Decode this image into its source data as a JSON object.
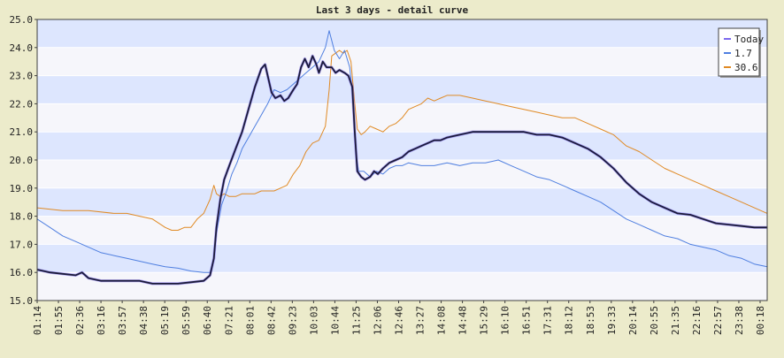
{
  "chart_data": {
    "type": "line",
    "title": "Last 3 days - detail curve",
    "xlabel": "",
    "ylabel": "",
    "ylim": [
      15.0,
      25.0
    ],
    "y_ticks": [
      "15.0",
      "16.0",
      "17.0",
      "18.0",
      "19.0",
      "20.0",
      "21.0",
      "22.0",
      "23.0",
      "24.0",
      "25.0"
    ],
    "x_ticks": [
      "01:14",
      "01:55",
      "02:36",
      "03:16",
      "03:57",
      "04:38",
      "05:19",
      "05:59",
      "06:40",
      "07:21",
      "08:01",
      "08:42",
      "09:23",
      "10:03",
      "10:44",
      "11:25",
      "12:06",
      "12:46",
      "13:27",
      "14:08",
      "14:48",
      "15:29",
      "16:10",
      "16:51",
      "17:31",
      "18:12",
      "18:53",
      "19:33",
      "20:14",
      "20:55",
      "21:35",
      "22:16",
      "22:57",
      "23:38",
      "00:18"
    ],
    "grid": true,
    "legend_position": "top-right",
    "colors": {
      "background": "#ecebcb",
      "band_blue": "#dde6fe",
      "band_light": "#f6f6fb",
      "frame": "#404040",
      "today_line": "#1a1a3a",
      "today_swatch": "#7b68ee",
      "series_1_7": "#4f7fe0",
      "series_30_6": "#e08a24"
    },
    "series": [
      {
        "name": "Today",
        "color": "#1a1a3a",
        "points": [
          [
            0,
            16.1
          ],
          [
            1,
            16.0
          ],
          [
            2,
            15.95
          ],
          [
            3,
            15.9
          ],
          [
            3.5,
            16.0
          ],
          [
            4,
            15.8
          ],
          [
            5,
            15.7
          ],
          [
            6,
            15.7
          ],
          [
            7,
            15.7
          ],
          [
            8,
            15.7
          ],
          [
            9,
            15.6
          ],
          [
            10,
            15.6
          ],
          [
            11,
            15.6
          ],
          [
            12,
            15.65
          ],
          [
            13,
            15.7
          ],
          [
            13.5,
            15.9
          ],
          [
            13.8,
            16.5
          ],
          [
            14,
            17.6
          ],
          [
            14.3,
            18.6
          ],
          [
            14.6,
            19.3
          ],
          [
            15,
            19.8
          ],
          [
            15.5,
            20.4
          ],
          [
            16,
            21.0
          ],
          [
            16.5,
            21.8
          ],
          [
            17,
            22.6
          ],
          [
            17.5,
            23.25
          ],
          [
            17.8,
            23.4
          ],
          [
            18,
            23.0
          ],
          [
            18.3,
            22.4
          ],
          [
            18.6,
            22.2
          ],
          [
            19,
            22.3
          ],
          [
            19.3,
            22.1
          ],
          [
            19.6,
            22.2
          ],
          [
            20,
            22.5
          ],
          [
            20.3,
            22.7
          ],
          [
            20.6,
            23.3
          ],
          [
            20.9,
            23.6
          ],
          [
            21.2,
            23.3
          ],
          [
            21.5,
            23.7
          ],
          [
            21.8,
            23.4
          ],
          [
            22,
            23.1
          ],
          [
            22.3,
            23.5
          ],
          [
            22.6,
            23.3
          ],
          [
            23,
            23.3
          ],
          [
            23.3,
            23.1
          ],
          [
            23.6,
            23.2
          ],
          [
            24,
            23.1
          ],
          [
            24.3,
            23.0
          ],
          [
            24.6,
            22.6
          ],
          [
            24.8,
            21.0
          ],
          [
            25,
            19.6
          ],
          [
            25.3,
            19.4
          ],
          [
            25.6,
            19.3
          ],
          [
            26,
            19.4
          ],
          [
            26.3,
            19.6
          ],
          [
            26.6,
            19.5
          ],
          [
            27,
            19.7
          ],
          [
            27.5,
            19.9
          ],
          [
            28,
            20.0
          ],
          [
            28.5,
            20.1
          ],
          [
            29,
            20.3
          ],
          [
            29.5,
            20.4
          ],
          [
            30,
            20.5
          ],
          [
            30.5,
            20.6
          ],
          [
            31,
            20.7
          ],
          [
            31.5,
            20.7
          ],
          [
            32,
            20.8
          ],
          [
            33,
            20.9
          ],
          [
            34,
            21.0
          ],
          [
            35,
            21.0
          ],
          [
            36,
            21.0
          ],
          [
            37,
            21.0
          ],
          [
            38,
            21.0
          ],
          [
            39,
            20.9
          ],
          [
            40,
            20.9
          ],
          [
            41,
            20.8
          ],
          [
            42,
            20.6
          ],
          [
            43,
            20.4
          ],
          [
            44,
            20.1
          ],
          [
            45,
            19.7
          ],
          [
            46,
            19.2
          ],
          [
            47,
            18.8
          ],
          [
            48,
            18.5
          ],
          [
            49,
            18.3
          ],
          [
            50,
            18.1
          ],
          [
            51,
            18.05
          ],
          [
            52,
            17.9
          ],
          [
            53,
            17.75
          ],
          [
            54,
            17.7
          ],
          [
            55,
            17.65
          ],
          [
            56,
            17.6
          ],
          [
            57,
            17.6
          ]
        ]
      },
      {
        "name": "1.7",
        "color": "#4f7fe0",
        "points": [
          [
            0,
            17.9
          ],
          [
            1,
            17.6
          ],
          [
            2,
            17.3
          ],
          [
            3,
            17.1
          ],
          [
            4,
            16.9
          ],
          [
            5,
            16.7
          ],
          [
            6,
            16.6
          ],
          [
            7,
            16.5
          ],
          [
            8,
            16.4
          ],
          [
            9,
            16.3
          ],
          [
            10,
            16.2
          ],
          [
            11,
            16.15
          ],
          [
            12,
            16.05
          ],
          [
            13,
            16.0
          ],
          [
            13.5,
            16.0
          ],
          [
            13.8,
            16.5
          ],
          [
            14,
            17.4
          ],
          [
            14.4,
            18.4
          ],
          [
            14.8,
            18.9
          ],
          [
            15.2,
            19.5
          ],
          [
            15.6,
            19.9
          ],
          [
            16,
            20.4
          ],
          [
            16.5,
            20.8
          ],
          [
            17,
            21.2
          ],
          [
            17.5,
            21.6
          ],
          [
            18,
            22.0
          ],
          [
            18.5,
            22.5
          ],
          [
            19,
            22.4
          ],
          [
            19.5,
            22.5
          ],
          [
            20,
            22.7
          ],
          [
            20.5,
            22.9
          ],
          [
            21,
            23.1
          ],
          [
            21.5,
            23.3
          ],
          [
            22,
            23.5
          ],
          [
            22.5,
            24.0
          ],
          [
            22.8,
            24.6
          ],
          [
            23.2,
            23.9
          ],
          [
            23.6,
            23.6
          ],
          [
            24,
            23.9
          ],
          [
            24.4,
            23.3
          ],
          [
            24.7,
            22.0
          ],
          [
            24.9,
            20.2
          ],
          [
            25.1,
            19.6
          ],
          [
            25.5,
            19.6
          ],
          [
            26,
            19.4
          ],
          [
            26.5,
            19.6
          ],
          [
            27,
            19.5
          ],
          [
            27.5,
            19.7
          ],
          [
            28,
            19.8
          ],
          [
            28.5,
            19.8
          ],
          [
            29,
            19.9
          ],
          [
            30,
            19.8
          ],
          [
            31,
            19.8
          ],
          [
            32,
            19.9
          ],
          [
            33,
            19.8
          ],
          [
            34,
            19.9
          ],
          [
            35,
            19.9
          ],
          [
            36,
            20.0
          ],
          [
            37,
            19.8
          ],
          [
            38,
            19.6
          ],
          [
            39,
            19.4
          ],
          [
            40,
            19.3
          ],
          [
            41,
            19.1
          ],
          [
            42,
            18.9
          ],
          [
            43,
            18.7
          ],
          [
            44,
            18.5
          ],
          [
            45,
            18.2
          ],
          [
            46,
            17.9
          ],
          [
            47,
            17.7
          ],
          [
            48,
            17.5
          ],
          [
            49,
            17.3
          ],
          [
            50,
            17.2
          ],
          [
            51,
            17.0
          ],
          [
            52,
            16.9
          ],
          [
            53,
            16.8
          ],
          [
            54,
            16.6
          ],
          [
            55,
            16.5
          ],
          [
            56,
            16.3
          ],
          [
            57,
            16.2
          ]
        ]
      },
      {
        "name": "30.6",
        "color": "#e08a24",
        "points": [
          [
            0,
            18.3
          ],
          [
            2,
            18.2
          ],
          [
            4,
            18.2
          ],
          [
            6,
            18.1
          ],
          [
            7,
            18.1
          ],
          [
            8,
            18.0
          ],
          [
            9,
            17.9
          ],
          [
            10,
            17.6
          ],
          [
            10.5,
            17.5
          ],
          [
            11,
            17.5
          ],
          [
            11.5,
            17.6
          ],
          [
            12,
            17.6
          ],
          [
            12.5,
            17.9
          ],
          [
            13,
            18.1
          ],
          [
            13.5,
            18.6
          ],
          [
            13.8,
            19.1
          ],
          [
            14,
            18.8
          ],
          [
            14.3,
            18.7
          ],
          [
            14.6,
            18.8
          ],
          [
            15,
            18.7
          ],
          [
            15.5,
            18.7
          ],
          [
            16,
            18.8
          ],
          [
            16.5,
            18.8
          ],
          [
            17,
            18.8
          ],
          [
            17.5,
            18.9
          ],
          [
            18,
            18.9
          ],
          [
            18.5,
            18.9
          ],
          [
            19,
            19.0
          ],
          [
            19.5,
            19.1
          ],
          [
            20,
            19.5
          ],
          [
            20.5,
            19.8
          ],
          [
            21,
            20.3
          ],
          [
            21.5,
            20.6
          ],
          [
            22,
            20.7
          ],
          [
            22.5,
            21.2
          ],
          [
            22.8,
            22.5
          ],
          [
            23,
            23.7
          ],
          [
            23.3,
            23.8
          ],
          [
            23.6,
            23.9
          ],
          [
            23.9,
            23.8
          ],
          [
            24.2,
            23.9
          ],
          [
            24.5,
            23.5
          ],
          [
            24.8,
            22.0
          ],
          [
            25,
            21.1
          ],
          [
            25.3,
            20.9
          ],
          [
            25.6,
            21.0
          ],
          [
            26,
            21.2
          ],
          [
            26.5,
            21.1
          ],
          [
            27,
            21.0
          ],
          [
            27.5,
            21.2
          ],
          [
            28,
            21.3
          ],
          [
            28.5,
            21.5
          ],
          [
            29,
            21.8
          ],
          [
            29.5,
            21.9
          ],
          [
            30,
            22.0
          ],
          [
            30.5,
            22.2
          ],
          [
            31,
            22.1
          ],
          [
            31.5,
            22.2
          ],
          [
            32,
            22.3
          ],
          [
            33,
            22.3
          ],
          [
            34,
            22.2
          ],
          [
            35,
            22.1
          ],
          [
            36,
            22.0
          ],
          [
            37,
            21.9
          ],
          [
            38,
            21.8
          ],
          [
            39,
            21.7
          ],
          [
            40,
            21.6
          ],
          [
            41,
            21.5
          ],
          [
            42,
            21.5
          ],
          [
            43,
            21.3
          ],
          [
            44,
            21.1
          ],
          [
            45,
            20.9
          ],
          [
            46,
            20.5
          ],
          [
            47,
            20.3
          ],
          [
            48,
            20.0
          ],
          [
            49,
            19.7
          ],
          [
            50,
            19.5
          ],
          [
            51,
            19.3
          ],
          [
            52,
            19.1
          ],
          [
            53,
            18.9
          ],
          [
            54,
            18.7
          ],
          [
            55,
            18.5
          ],
          [
            56,
            18.3
          ],
          [
            57,
            18.1
          ]
        ]
      }
    ]
  }
}
